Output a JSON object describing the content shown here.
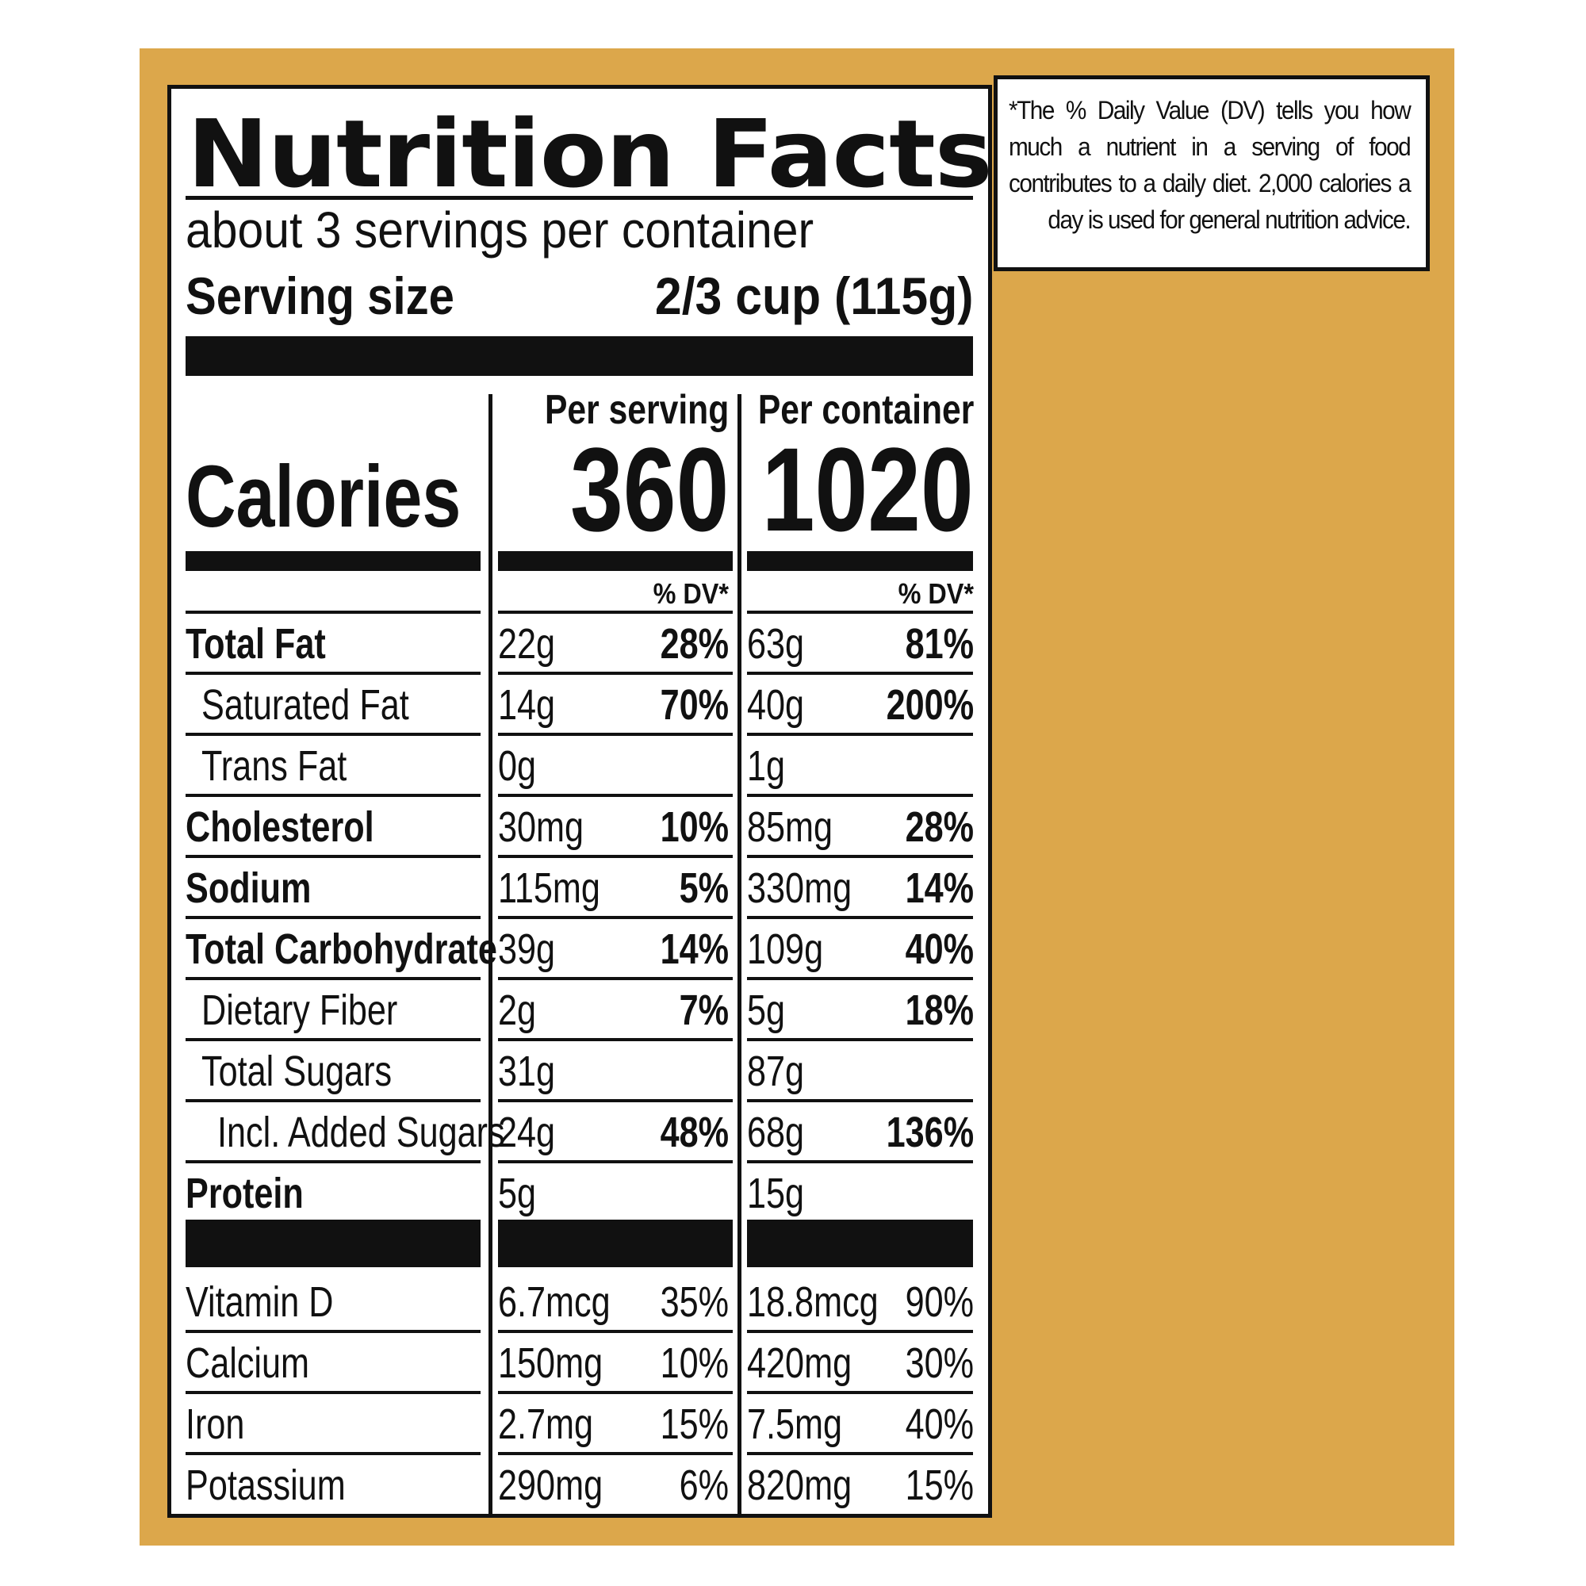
{
  "title": "Nutrition Facts",
  "servings_per_container": "about 3 servings per container",
  "serving_size_label": "Serving size",
  "serving_size_value": "2/3 cup (115g)",
  "per_serving_label": "Per serving",
  "per_container_label": "Per container",
  "calories_label": "Calories",
  "calories_per_serving": "360",
  "calories_per_container": "1020",
  "dv_header": "% DV*",
  "nutrients": [
    {
      "name": "Total Fat",
      "bold": true,
      "indent": 0,
      "serving_amount": "22g",
      "serving_dv": "28%",
      "container_amount": "63g",
      "container_dv": "81%"
    },
    {
      "name": "Saturated Fat",
      "bold": false,
      "indent": 1,
      "serving_amount": "14g",
      "serving_dv": "70%",
      "container_amount": "40g",
      "container_dv": "200%"
    },
    {
      "name": "Trans Fat",
      "bold": false,
      "indent": 1,
      "serving_amount": "0g",
      "serving_dv": "",
      "container_amount": "1g",
      "container_dv": ""
    },
    {
      "name": "Cholesterol",
      "bold": true,
      "indent": 0,
      "serving_amount": "30mg",
      "serving_dv": "10%",
      "container_amount": "85mg",
      "container_dv": "28%"
    },
    {
      "name": "Sodium",
      "bold": true,
      "indent": 0,
      "serving_amount": "115mg",
      "serving_dv": "5%",
      "container_amount": "330mg",
      "container_dv": "14%"
    },
    {
      "name": "Total Carbohydrate",
      "bold": true,
      "indent": 0,
      "serving_amount": "39g",
      "serving_dv": "14%",
      "container_amount": "109g",
      "container_dv": "40%"
    },
    {
      "name": "Dietary Fiber",
      "bold": false,
      "indent": 1,
      "serving_amount": "2g",
      "serving_dv": "7%",
      "container_amount": "5g",
      "container_dv": "18%"
    },
    {
      "name": "Total Sugars",
      "bold": false,
      "indent": 1,
      "serving_amount": "31g",
      "serving_dv": "",
      "container_amount": "87g",
      "container_dv": ""
    },
    {
      "name": "Incl. Added Sugars",
      "bold": false,
      "indent": 2,
      "serving_amount": "24g",
      "serving_dv": "48%",
      "container_amount": "68g",
      "container_dv": "136%"
    },
    {
      "name": "Protein",
      "bold": true,
      "indent": 0,
      "serving_amount": "5g",
      "serving_dv": "",
      "container_amount": "15g",
      "container_dv": ""
    }
  ],
  "vitamins": [
    {
      "name": "Vitamin D",
      "serving_amount": "6.7mcg",
      "serving_dv": "35%",
      "container_amount": "18.8mcg",
      "container_dv": "90%"
    },
    {
      "name": "Calcium",
      "serving_amount": "150mg",
      "serving_dv": "10%",
      "container_amount": "420mg",
      "container_dv": "30%"
    },
    {
      "name": "Iron",
      "serving_amount": "2.7mg",
      "serving_dv": "15%",
      "container_amount": "7.5mg",
      "container_dv": "40%"
    },
    {
      "name": "Potassium",
      "serving_amount": "290mg",
      "serving_dv": "6%",
      "container_amount": "820mg",
      "container_dv": "15%"
    }
  ],
  "footnote": "*The % Daily Value (DV) tells you how much a nutrient in a serving of food contributes to a daily diet. 2,000 calories a day is used for general nutrition advice.",
  "colors": {
    "background": "#dca74b",
    "label": "#ffffff",
    "ink": "#111111"
  }
}
